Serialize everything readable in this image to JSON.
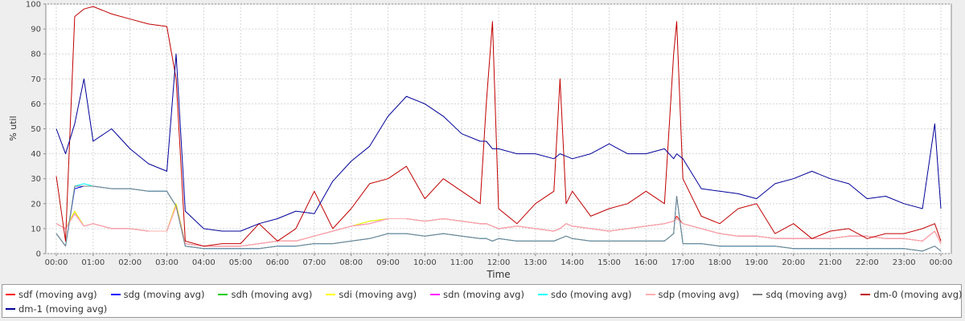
{
  "chart_data": {
    "type": "line",
    "title": "",
    "xlabel": "Time",
    "ylabel": "% util",
    "ylim": [
      0,
      100
    ],
    "xlim": [
      "00:00",
      "24:00"
    ],
    "y_ticks": [
      "0",
      "10",
      "20",
      "30",
      "40",
      "50",
      "60",
      "70",
      "80",
      "90",
      "100"
    ],
    "x_ticks": [
      "00:00",
      "01:00",
      "02:00",
      "03:00",
      "04:00",
      "05:00",
      "06:00",
      "07:00",
      "08:00",
      "09:00",
      "10:00",
      "11:00",
      "12:00",
      "13:00",
      "14:00",
      "15:00",
      "16:00",
      "17:00",
      "18:00",
      "19:00",
      "20:00",
      "21:00",
      "22:00",
      "23:00",
      "00:00"
    ],
    "grid": true,
    "legend_position": "bottom",
    "x": [
      "00:00",
      "00:15",
      "00:30",
      "00:45",
      "01:00",
      "01:30",
      "02:00",
      "02:30",
      "03:00",
      "03:15",
      "03:30",
      "04:00",
      "04:30",
      "05:00",
      "05:30",
      "06:00",
      "06:30",
      "07:00",
      "07:30",
      "08:00",
      "08:30",
      "09:00",
      "09:30",
      "10:00",
      "10:30",
      "11:00",
      "11:30",
      "11:40",
      "11:50",
      "12:00",
      "12:30",
      "13:00",
      "13:30",
      "13:40",
      "13:50",
      "14:00",
      "14:30",
      "15:00",
      "15:30",
      "16:00",
      "16:30",
      "16:45",
      "16:50",
      "17:00",
      "17:30",
      "18:00",
      "18:30",
      "19:00",
      "19:30",
      "20:00",
      "20:30",
      "21:00",
      "21:30",
      "22:00",
      "22:30",
      "23:00",
      "23:30",
      "23:50",
      "24:00"
    ],
    "series": [
      {
        "name": "sdf (moving avg)",
        "color": "#ff0000",
        "values": [
          12,
          10,
          16,
          11,
          12,
          10,
          10,
          9,
          9,
          20,
          4,
          3,
          3,
          3,
          4,
          5,
          5,
          7,
          9,
          11,
          12,
          14,
          14,
          13,
          14,
          13,
          12,
          12,
          11,
          10,
          11,
          10,
          9,
          10,
          12,
          11,
          10,
          9,
          10,
          11,
          12,
          13,
          15,
          12,
          10,
          8,
          7,
          7,
          6,
          6,
          6,
          6,
          7,
          7,
          6,
          6,
          5,
          9,
          4
        ]
      },
      {
        "name": "sdg (moving avg)",
        "color": "#0000ff",
        "values": [
          8,
          3,
          26,
          27,
          27,
          26,
          26,
          25,
          25,
          19,
          3,
          2,
          2,
          2,
          2,
          3,
          3,
          4,
          4,
          5,
          6,
          8,
          8,
          7,
          8,
          7,
          6,
          6,
          5,
          6,
          5,
          5,
          5,
          6,
          7,
          6,
          5,
          5,
          5,
          5,
          5,
          8,
          23,
          4,
          4,
          3,
          3,
          3,
          3,
          2,
          2,
          2,
          2,
          2,
          2,
          2,
          1,
          3,
          1
        ]
      },
      {
        "name": "sdh (moving avg)",
        "color": "#00cc00",
        "values": [
          12,
          10,
          17,
          11,
          12,
          10,
          10,
          9,
          9,
          20,
          4,
          3,
          3,
          3,
          4,
          5,
          5,
          7,
          9,
          11,
          13,
          14,
          14,
          13,
          14,
          13,
          12,
          12,
          11,
          10,
          11,
          10,
          9,
          10,
          12,
          11,
          10,
          9,
          10,
          11,
          12,
          13,
          14,
          12,
          10,
          8,
          7,
          7,
          6,
          6,
          6,
          6,
          7,
          7,
          6,
          6,
          5,
          9,
          4
        ]
      },
      {
        "name": "sdi (moving avg)",
        "color": "#ffff00",
        "values": [
          12,
          10,
          17,
          11,
          12,
          10,
          10,
          9,
          9,
          20,
          4,
          3,
          3,
          3,
          4,
          5,
          5,
          7,
          9,
          11,
          13,
          14,
          14,
          13,
          14,
          13,
          12,
          12,
          11,
          10,
          11,
          10,
          9,
          10,
          12,
          11,
          10,
          9,
          10,
          11,
          12,
          13,
          14,
          12,
          10,
          8,
          7,
          7,
          6,
          6,
          6,
          6,
          7,
          7,
          6,
          6,
          5,
          9,
          4
        ]
      },
      {
        "name": "sdn (moving avg)",
        "color": "#ff00ff",
        "values": [
          12,
          10,
          16,
          11,
          12,
          10,
          10,
          9,
          9,
          19,
          4,
          3,
          3,
          3,
          4,
          5,
          5,
          7,
          9,
          11,
          12,
          14,
          14,
          13,
          14,
          13,
          12,
          12,
          11,
          10,
          11,
          10,
          9,
          10,
          12,
          11,
          10,
          9,
          10,
          11,
          12,
          13,
          14,
          12,
          10,
          8,
          7,
          7,
          6,
          6,
          6,
          6,
          7,
          7,
          6,
          6,
          5,
          9,
          4
        ]
      },
      {
        "name": "sdo (moving avg)",
        "color": "#00ffff",
        "values": [
          8,
          3,
          27,
          28,
          27,
          26,
          26,
          25,
          25,
          19,
          3,
          2,
          2,
          2,
          2,
          3,
          3,
          4,
          4,
          5,
          6,
          8,
          8,
          7,
          8,
          7,
          6,
          6,
          5,
          6,
          5,
          5,
          5,
          6,
          7,
          6,
          5,
          5,
          5,
          5,
          5,
          8,
          23,
          4,
          4,
          3,
          3,
          3,
          3,
          2,
          2,
          2,
          2,
          2,
          2,
          2,
          1,
          3,
          1
        ]
      },
      {
        "name": "sdp (moving avg)",
        "color": "#ffafaf",
        "values": [
          12,
          10,
          16,
          11,
          12,
          10,
          10,
          9,
          9,
          19,
          4,
          3,
          3,
          3,
          4,
          5,
          5,
          7,
          9,
          11,
          12,
          14,
          14,
          13,
          14,
          13,
          12,
          12,
          11,
          10,
          11,
          10,
          9,
          10,
          12,
          11,
          10,
          9,
          10,
          11,
          12,
          13,
          14,
          12,
          10,
          8,
          7,
          7,
          6,
          6,
          6,
          6,
          7,
          7,
          6,
          6,
          5,
          9,
          4
        ]
      },
      {
        "name": "sdq (moving avg)",
        "color": "#808080",
        "values": [
          8,
          3,
          27,
          27,
          27,
          26,
          26,
          25,
          25,
          19,
          3,
          2,
          2,
          2,
          2,
          3,
          3,
          4,
          4,
          5,
          6,
          8,
          8,
          7,
          8,
          7,
          6,
          6,
          5,
          6,
          5,
          5,
          5,
          6,
          7,
          6,
          5,
          5,
          5,
          5,
          5,
          8,
          23,
          4,
          4,
          3,
          3,
          3,
          3,
          2,
          2,
          2,
          2,
          2,
          2,
          2,
          1,
          3,
          1
        ]
      },
      {
        "name": "dm-0 (moving avg)",
        "color": "#c00000",
        "values": [
          31,
          5,
          95,
          98,
          99,
          96,
          94,
          92,
          91,
          70,
          5,
          3,
          4,
          4,
          12,
          5,
          10,
          25,
          10,
          18,
          28,
          30,
          35,
          22,
          30,
          25,
          20,
          60,
          93,
          18,
          12,
          20,
          25,
          70,
          20,
          25,
          15,
          18,
          20,
          25,
          20,
          80,
          93,
          30,
          15,
          12,
          18,
          20,
          8,
          12,
          6,
          9,
          10,
          6,
          8,
          8,
          10,
          12,
          5
        ]
      },
      {
        "name": "dm-1 (moving avg)",
        "color": "#000099",
        "values": [
          50,
          40,
          52,
          70,
          45,
          50,
          42,
          36,
          33,
          80,
          17,
          10,
          9,
          9,
          12,
          14,
          17,
          16,
          29,
          37,
          43,
          55,
          63,
          60,
          55,
          48,
          45,
          45,
          42,
          42,
          40,
          40,
          38,
          40,
          39,
          38,
          40,
          44,
          40,
          40,
          42,
          38,
          40,
          38,
          26,
          25,
          24,
          22,
          28,
          30,
          33,
          30,
          28,
          22,
          23,
          20,
          18,
          52,
          18
        ]
      }
    ]
  }
}
